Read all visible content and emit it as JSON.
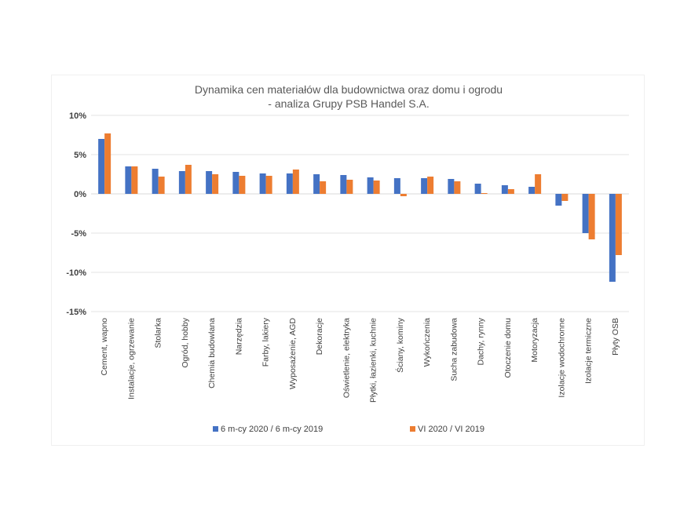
{
  "chart_data": {
    "type": "bar",
    "title": "Dynamika cen materiałów dla budownictwa oraz domu i ogrodu",
    "subtitle": "- analiza Grupy PSB Handel S.A.",
    "xlabel": "",
    "ylabel": "",
    "ylim": [
      -15,
      10
    ],
    "yticks": [
      10,
      5,
      0,
      -5,
      -10,
      -15
    ],
    "ytick_labels": [
      "10%",
      "5%",
      "0%",
      "-5%",
      "-10%",
      "-15%"
    ],
    "grid": true,
    "legend_position": "bottom",
    "categories": [
      "Cement, wapno",
      "Instalacje, ogrzewanie",
      "Stolarka",
      "Ogród, hobby",
      "Chemia budowlana",
      "Narzędzia",
      "Farby, lakiery",
      "Wyposażenie, AGD",
      "Dekoracje",
      "Oświetlenie, elektryka",
      "Płytki, łazienki, kuchnie",
      "Ściany, kominy",
      "Wykończenia",
      "Sucha zabudowa",
      "Dachy, rynny",
      "Otoczenie domu",
      "Motoryzacja",
      "Izolacje wodochronne",
      "Izolacje termiczne",
      "Płyty OSB"
    ],
    "series": [
      {
        "name": "6 m-cy 2020 / 6 m-cy 2019",
        "color": "#4472C4",
        "values": [
          7.0,
          3.5,
          3.2,
          2.9,
          2.9,
          2.8,
          2.6,
          2.6,
          2.5,
          2.4,
          2.1,
          2.0,
          2.0,
          1.9,
          1.3,
          1.1,
          0.9,
          -1.5,
          -5.0,
          -11.2
        ]
      },
      {
        "name": "VI 2020 / VI 2019",
        "color": "#ED7D31",
        "values": [
          7.7,
          3.5,
          2.2,
          3.7,
          2.5,
          2.3,
          2.3,
          3.1,
          1.6,
          1.8,
          1.7,
          -0.3,
          2.2,
          1.6,
          0.1,
          0.6,
          2.5,
          -0.9,
          -5.8,
          -7.8
        ]
      }
    ]
  }
}
